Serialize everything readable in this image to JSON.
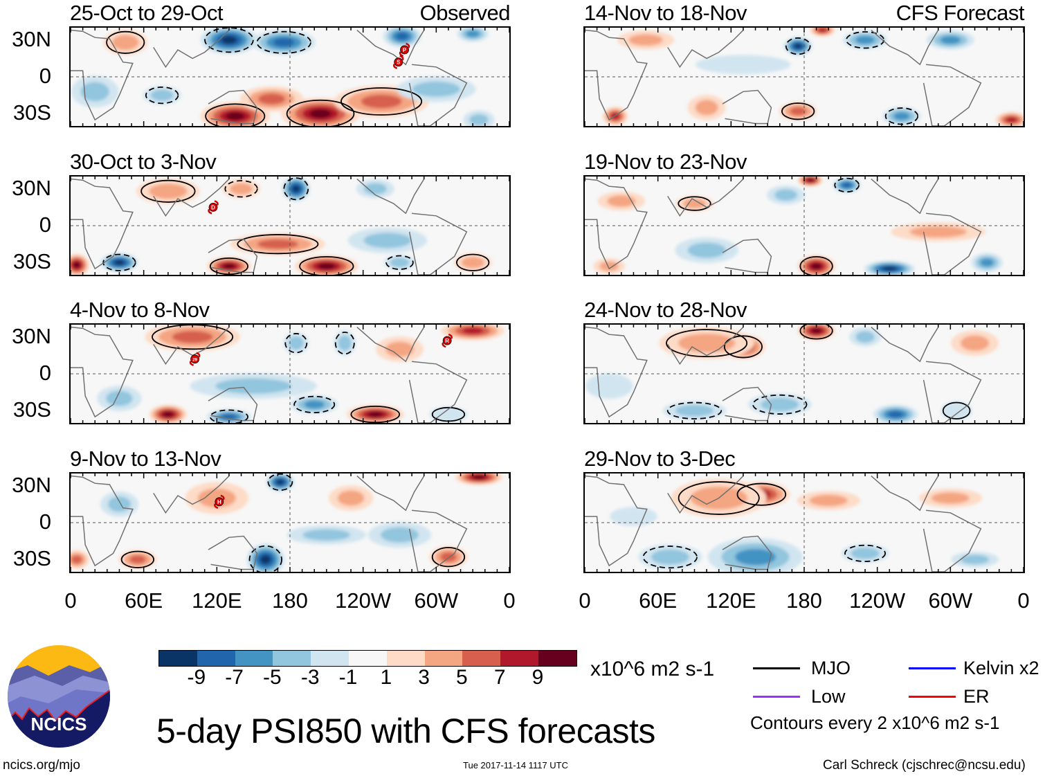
{
  "panels": [
    {
      "title": "25-Oct to 29-Oct",
      "right_label": "Observed",
      "storms": [
        {
          "label": "P",
          "lon": 274,
          "lat": 22
        },
        {
          "label": "S",
          "lon": 269,
          "lat": 12
        }
      ]
    },
    {
      "title": "30-Oct to 3-Nov",
      "storms": [
        {
          "label": "D",
          "lon": 117,
          "lat": 15
        }
      ]
    },
    {
      "title": "4-Nov to 8-Nov",
      "storms": [
        {
          "label": "29",
          "lon": 102,
          "lat": 12
        },
        {
          "label": "R",
          "lon": 309,
          "lat": 27
        }
      ]
    },
    {
      "title": "9-Nov to 13-Nov",
      "storms": [
        {
          "label": "H",
          "lon": 122,
          "lat": 17
        }
      ]
    },
    {
      "title": "14-Nov to 18-Nov",
      "right_label": "CFS Forecast",
      "storms": []
    },
    {
      "title": "19-Nov to 23-Nov",
      "storms": []
    },
    {
      "title": "24-Nov to 28-Nov",
      "storms": []
    },
    {
      "title": "29-Nov to 3-Dec",
      "storms": []
    }
  ],
  "y_ticks": [
    "30N",
    "0",
    "30S"
  ],
  "x_ticks": [
    "0",
    "60E",
    "120E",
    "180",
    "120W",
    "60W",
    "0"
  ],
  "colorbar": {
    "colors": [
      "#0b3466",
      "#2166ac",
      "#4393c3",
      "#92c5de",
      "#d1e5f0",
      "#f7f7f7",
      "#fddbc7",
      "#f4a582",
      "#d6604d",
      "#b2182b",
      "#67001f"
    ],
    "labels": [
      "-9",
      "-7",
      "-5",
      "-3",
      "-1",
      "1",
      "3",
      "5",
      "7",
      "9"
    ],
    "units": "x10^6 m2 s-1"
  },
  "legend": {
    "items": [
      {
        "label": "MJO",
        "color": "#000000"
      },
      {
        "label": "Kelvin x2",
        "color": "#0000ff"
      },
      {
        "label": "Low",
        "color": "#9b30ff"
      },
      {
        "label": "ER",
        "color": "#ff0000"
      }
    ],
    "contour_note": "Contours every 2 x10^6 m2 s-1"
  },
  "title": "5-day PSI850 with CFS forecasts",
  "logo_text": "NCICS",
  "footer": {
    "left": "ncics.org/mjo",
    "center": "Tue 2017-11-14 1117 UTC",
    "right": "Carl Schreck (cjschrec@ncsu.edu)"
  }
}
